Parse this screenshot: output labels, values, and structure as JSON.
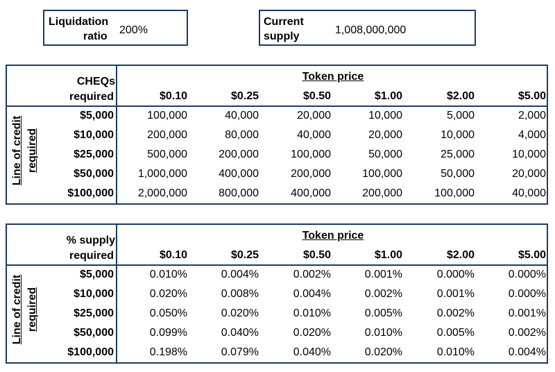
{
  "liquidation": {
    "label_line1": "Liquidation",
    "label_line2": "ratio",
    "value": "200%"
  },
  "supply": {
    "label_line1": "Current",
    "label_line2": "supply",
    "value": "1,008,000,000"
  },
  "table1": {
    "corner_line1": "CHEQs",
    "corner_line2": "required",
    "price_title": "Token price",
    "side_line1": "Line of credit",
    "side_line2": "required",
    "prices": [
      "$0.10",
      "$0.25",
      "$0.50",
      "$1.00",
      "$2.00",
      "$5.00"
    ],
    "rows": [
      {
        "label": "$5,000",
        "cells": [
          "100,000",
          "40,000",
          "20,000",
          "10,000",
          "5,000",
          "2,000"
        ]
      },
      {
        "label": "$10,000",
        "cells": [
          "200,000",
          "80,000",
          "40,000",
          "20,000",
          "10,000",
          "4,000"
        ]
      },
      {
        "label": "$25,000",
        "cells": [
          "500,000",
          "200,000",
          "100,000",
          "50,000",
          "25,000",
          "10,000"
        ]
      },
      {
        "label": "$50,000",
        "cells": [
          "1,000,000",
          "400,000",
          "200,000",
          "100,000",
          "50,000",
          "20,000"
        ]
      },
      {
        "label": "$100,000",
        "cells": [
          "2,000,000",
          "800,000",
          "400,000",
          "200,000",
          "100,000",
          "40,000"
        ]
      }
    ]
  },
  "table2": {
    "corner_line1": "% supply",
    "corner_line2": "required",
    "price_title": "Token price",
    "side_line1": "Line of credit",
    "side_line2": "required",
    "prices": [
      "$0.10",
      "$0.25",
      "$0.50",
      "$1.00",
      "$2.00",
      "$5.00"
    ],
    "rows": [
      {
        "label": "$5,000",
        "cells": [
          "0.010%",
          "0.004%",
          "0.002%",
          "0.001%",
          "0.000%",
          "0.000%"
        ]
      },
      {
        "label": "$10,000",
        "cells": [
          "0.020%",
          "0.008%",
          "0.004%",
          "0.002%",
          "0.001%",
          "0.000%"
        ]
      },
      {
        "label": "$25,000",
        "cells": [
          "0.050%",
          "0.020%",
          "0.010%",
          "0.005%",
          "0.002%",
          "0.001%"
        ]
      },
      {
        "label": "$50,000",
        "cells": [
          "0.099%",
          "0.040%",
          "0.020%",
          "0.010%",
          "0.005%",
          "0.002%"
        ]
      },
      {
        "label": "$100,000",
        "cells": [
          "0.198%",
          "0.079%",
          "0.040%",
          "0.020%",
          "0.010%",
          "0.004%"
        ]
      }
    ]
  }
}
